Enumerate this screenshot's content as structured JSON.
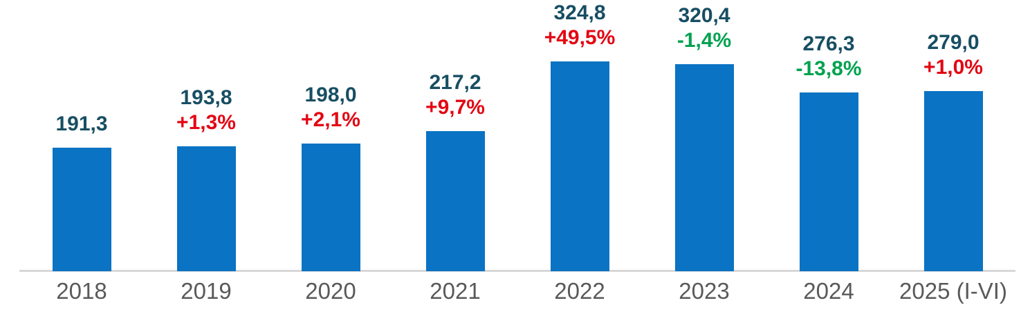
{
  "chart_data": {
    "type": "bar",
    "categories": [
      "2018",
      "2019",
      "2020",
      "2021",
      "2022",
      "2023",
      "2024",
      "2025 (I-VI)"
    ],
    "values": [
      191.3,
      193.8,
      198.0,
      217.2,
      324.8,
      320.4,
      276.3,
      279.0
    ],
    "value_labels": [
      "191,3",
      "193,8",
      "198,0",
      "217,2",
      "324,8",
      "320,4",
      "276,3",
      "279,0"
    ],
    "pct_change_labels": [
      "",
      "+1,3%",
      "+2,1%",
      "+9,7%",
      "+49,5%",
      "-1,4%",
      "-13,8%",
      "+1,0%"
    ],
    "pct_change_directions": [
      "",
      "up",
      "up",
      "up",
      "up",
      "down",
      "down",
      "up"
    ],
    "title": "",
    "xlabel": "",
    "ylabel": "",
    "ylim": [
      0,
      420
    ],
    "grid": false,
    "legend": null,
    "decimal_style": "comma",
    "colors": {
      "bar": "#0a73c3",
      "value_label": "#174e63",
      "pct_up": "#e30613",
      "pct_down": "#00a24f",
      "axis_line": "#d8d8d8",
      "category_label": "#595959"
    }
  }
}
